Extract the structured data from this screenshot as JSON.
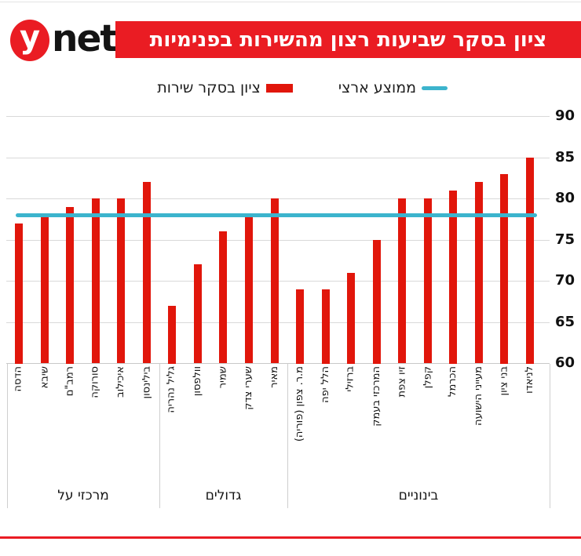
{
  "header": {
    "logo_y": "y",
    "logo_net": "net",
    "title": "ציון בסקר שביעות רצון מהשירות בפנימיות"
  },
  "colors": {
    "bar": "#e1160b",
    "banner": "#ea1c23",
    "average_line": "#3cb4cd",
    "grid": "#d9d9d9"
  },
  "chart_data": {
    "type": "bar",
    "title": "ציון בסקר שביעות רצון מהשירות בפנימיות",
    "series_label": "ציון בסקר שירות",
    "average_line": {
      "label": "ממוצע ארצי",
      "value": 78
    },
    "ylim": [
      60,
      90
    ],
    "yticks": [
      90,
      85,
      80,
      75,
      70,
      65,
      60
    ],
    "grid": true,
    "legend_position": "top",
    "groups": [
      {
        "label": "מרכזי על",
        "bars": [
          {
            "name": "הדסה",
            "value": 77
          },
          {
            "name": "שיבא",
            "value": 78
          },
          {
            "name": "רמב\"ם",
            "value": 79
          },
          {
            "name": "סורוקה",
            "value": 80
          },
          {
            "name": "איכילוב",
            "value": 80
          },
          {
            "name": "בילינסון",
            "value": 82
          }
        ]
      },
      {
        "label": "גדולים",
        "bars": [
          {
            "name": "גליל נהריה",
            "value": 67
          },
          {
            "name": "וולפסון",
            "value": 72
          },
          {
            "name": "שמיר",
            "value": 76
          },
          {
            "name": "שערי צדק",
            "value": 78
          },
          {
            "name": "מאיר",
            "value": 80
          }
        ]
      },
      {
        "label": "בינוניים",
        "bars": [
          {
            "name": "מ.ר. צפון (פוריה)",
            "value": 69
          },
          {
            "name": "הלל יפה",
            "value": 69
          },
          {
            "name": "ברזילי",
            "value": 71
          },
          {
            "name": "המרכזי בעמק",
            "value": 75
          },
          {
            "name": "זיו צפת",
            "value": 80
          },
          {
            "name": "קפלן",
            "value": 80
          },
          {
            "name": "הכרמל",
            "value": 81
          },
          {
            "name": "מעייני הישועה",
            "value": 82
          },
          {
            "name": "בני ציון",
            "value": 83
          },
          {
            "name": "לניאדו",
            "value": 85
          }
        ]
      }
    ]
  }
}
